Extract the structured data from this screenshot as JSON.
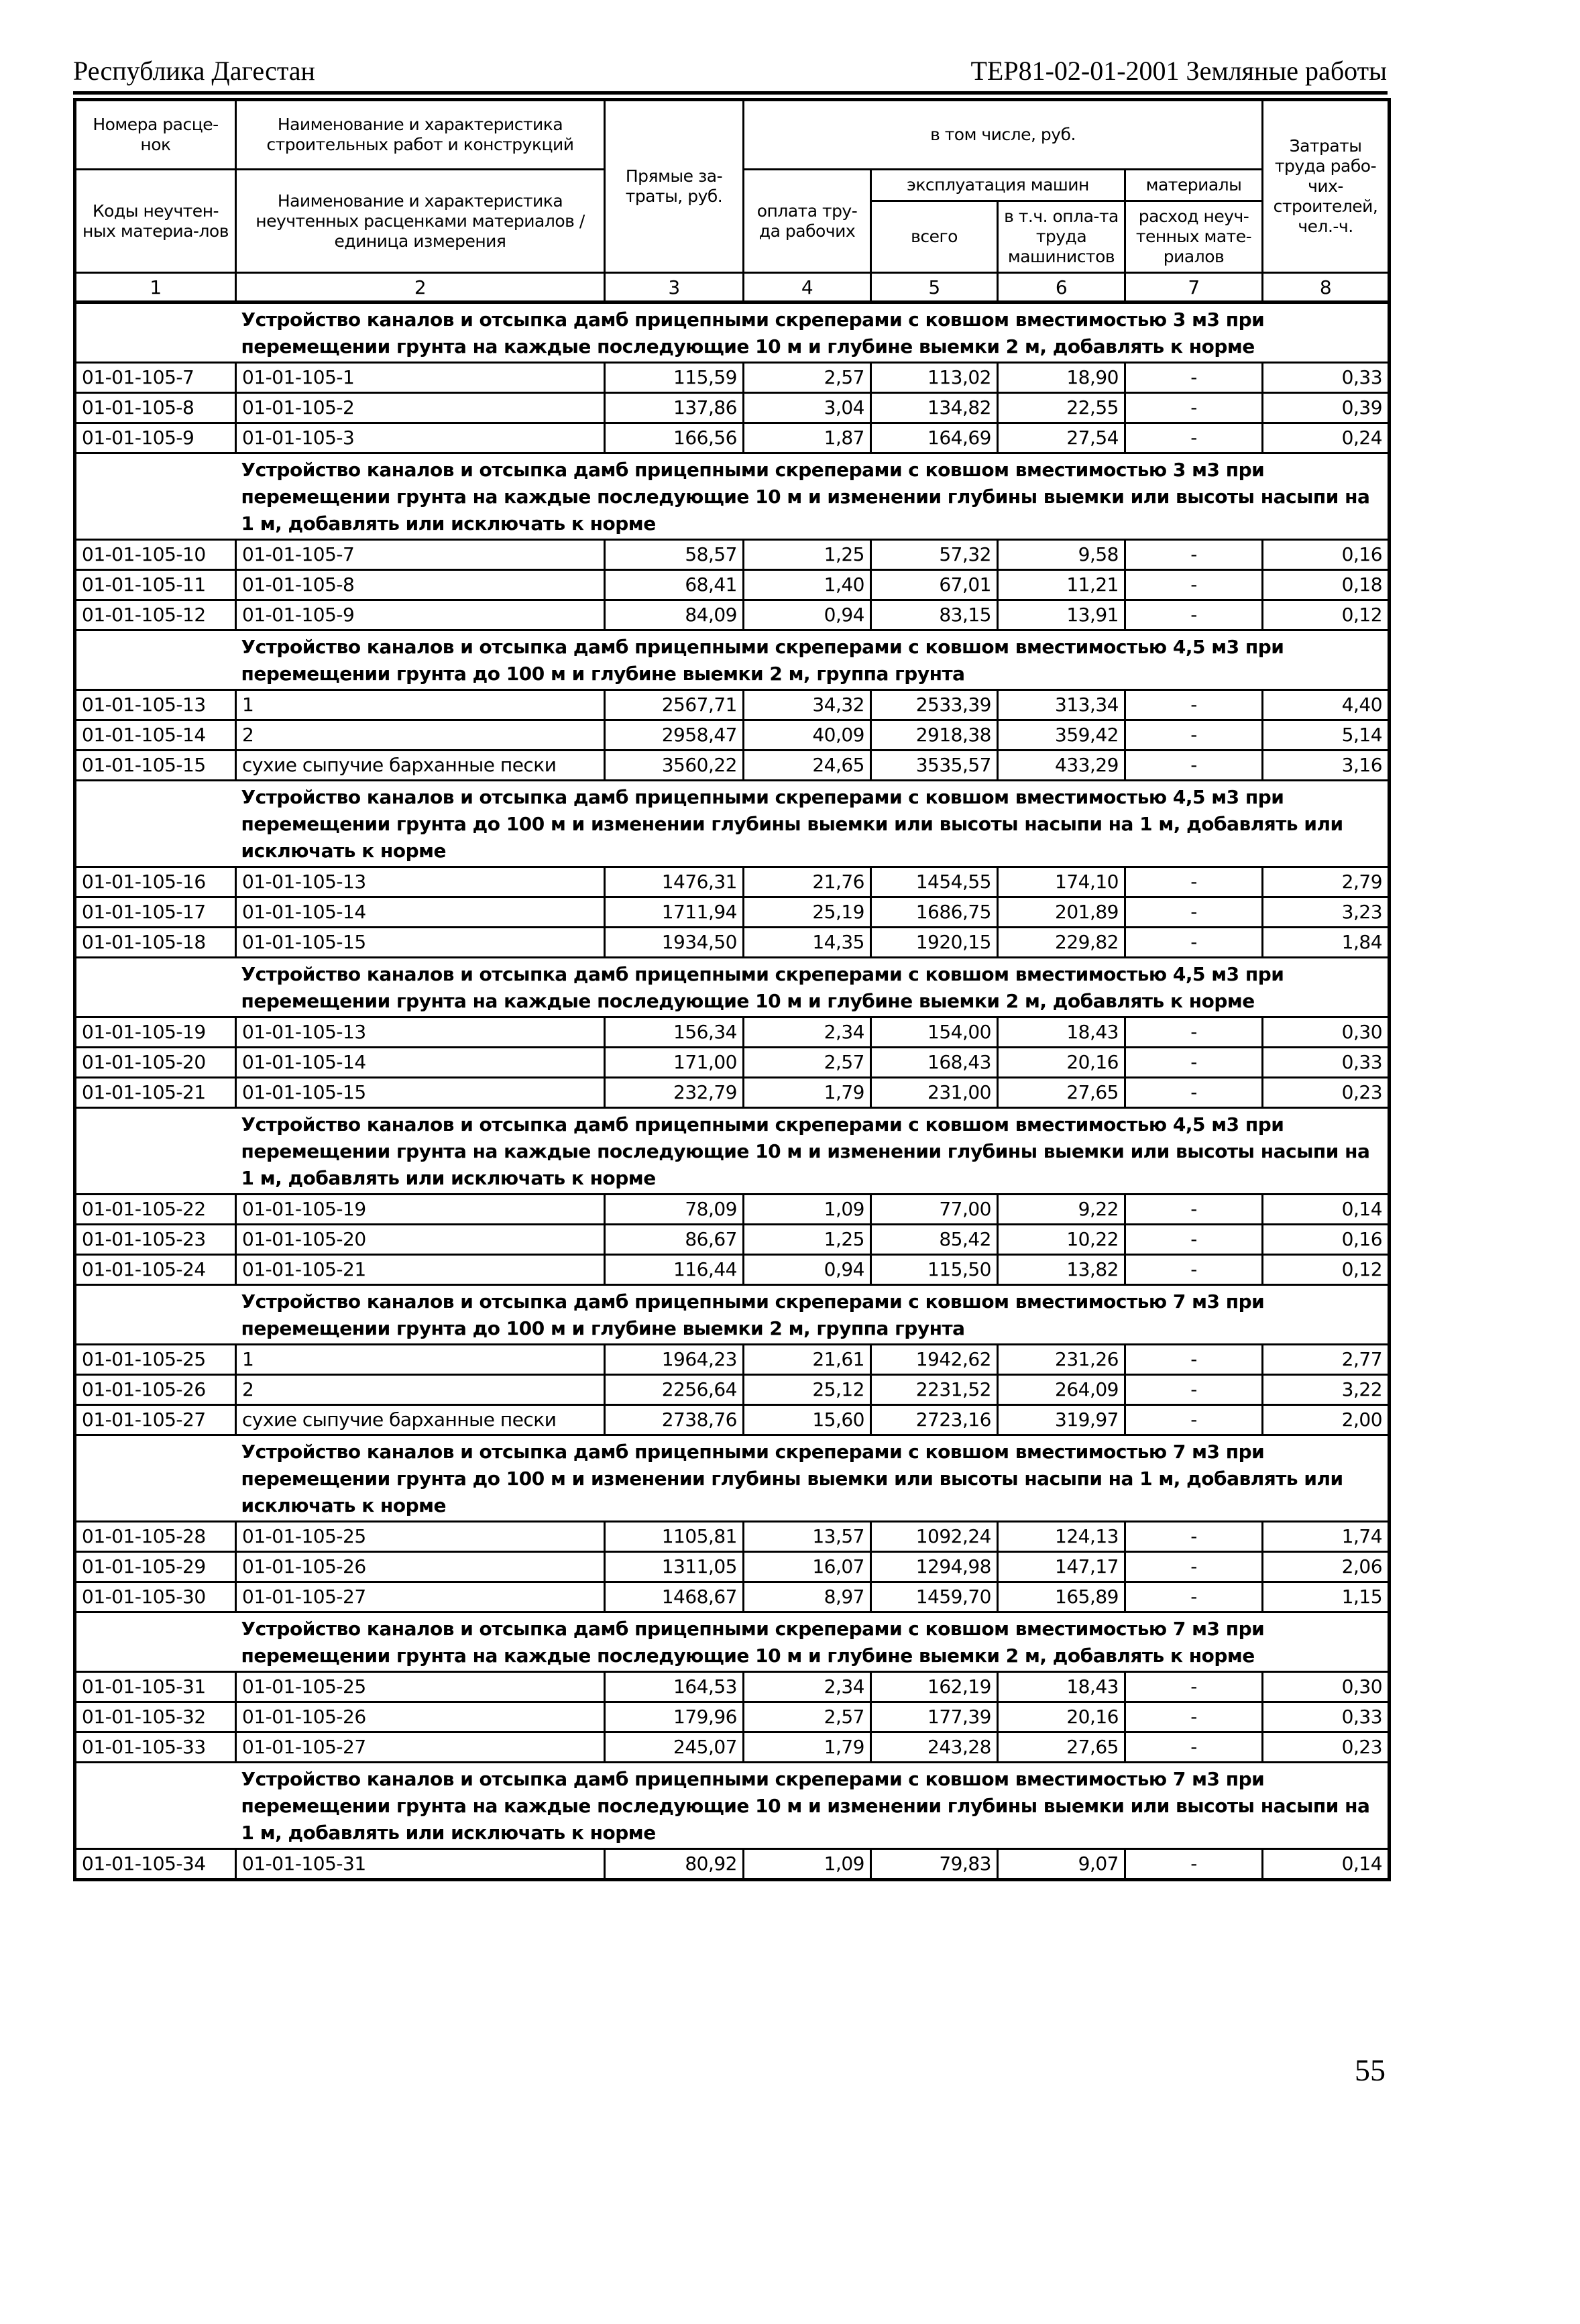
{
  "header": {
    "left": "Республика Дагестан",
    "right": "ТЕР81-02-01-2001  Земляные работы"
  },
  "columns": {
    "c1_top": "Номера расце-нок",
    "c1_bottom": "Коды неучтен-ных материа-лов",
    "c2_top": "Наименование и характеристика строительных работ и конструкций",
    "c2_bottom": "Наименование и характеристика неучтенных расценками материалов / единица измерения",
    "c3": "Прямые за-траты, руб.",
    "incl": "в том числе, руб.",
    "c4": "оплата тру-да рабочих",
    "machines": "эксплуатация машин",
    "c5": "всего",
    "c6": "в т.ч. опла-та труда машинистов",
    "materials": "материалы",
    "c7": "расход неуч-тенных мате-риалов",
    "c8": "Затраты труда рабо-чих-строителей, чел.-ч.",
    "numbers": [
      "1",
      "2",
      "3",
      "4",
      "5",
      "6",
      "7",
      "8"
    ]
  },
  "sections": [
    {
      "title": "Устройство каналов и отсыпка дамб прицепными скреперами с ковшом вместимостью 3 м3 при перемещении грунта на каждые последующие 10 м и глубине выемки 2 м, добавлять к норме",
      "rows": [
        [
          "01-01-105-7",
          "01-01-105-1",
          "115,59",
          "2,57",
          "113,02",
          "18,90",
          "-",
          "0,33"
        ],
        [
          "01-01-105-8",
          "01-01-105-2",
          "137,86",
          "3,04",
          "134,82",
          "22,55",
          "-",
          "0,39"
        ],
        [
          "01-01-105-9",
          "01-01-105-3",
          "166,56",
          "1,87",
          "164,69",
          "27,54",
          "-",
          "0,24"
        ]
      ]
    },
    {
      "title": "Устройство каналов и отсыпка дамб прицепными скреперами с ковшом вместимостью 3 м3 при перемещении грунта на каждые последующие 10 м и изменении глубины выемки или высоты насыпи на 1 м, добавлять или исключать к норме",
      "rows": [
        [
          "01-01-105-10",
          "01-01-105-7",
          "58,57",
          "1,25",
          "57,32",
          "9,58",
          "-",
          "0,16"
        ],
        [
          "01-01-105-11",
          "01-01-105-8",
          "68,41",
          "1,40",
          "67,01",
          "11,21",
          "-",
          "0,18"
        ],
        [
          "01-01-105-12",
          "01-01-105-9",
          "84,09",
          "0,94",
          "83,15",
          "13,91",
          "-",
          "0,12"
        ]
      ]
    },
    {
      "title": "Устройство каналов и отсыпка дамб прицепными скреперами с ковшом вместимостью 4,5 м3 при перемещении грунта до 100 м и глубине выемки 2 м, группа грунта",
      "rows": [
        [
          "01-01-105-13",
          "1",
          "2567,71",
          "34,32",
          "2533,39",
          "313,34",
          "-",
          "4,40"
        ],
        [
          "01-01-105-14",
          "2",
          "2958,47",
          "40,09",
          "2918,38",
          "359,42",
          "-",
          "5,14"
        ],
        [
          "01-01-105-15",
          "сухие сыпучие барханные пески",
          "3560,22",
          "24,65",
          "3535,57",
          "433,29",
          "-",
          "3,16"
        ]
      ]
    },
    {
      "title": "Устройство каналов и отсыпка дамб прицепными скреперами с ковшом вместимостью 4,5 м3 при перемещении грунта до 100 м и изменении глубины выемки или высоты насыпи на 1 м, добавлять или исключать к норме",
      "rows": [
        [
          "01-01-105-16",
          "01-01-105-13",
          "1476,31",
          "21,76",
          "1454,55",
          "174,10",
          "-",
          "2,79"
        ],
        [
          "01-01-105-17",
          "01-01-105-14",
          "1711,94",
          "25,19",
          "1686,75",
          "201,89",
          "-",
          "3,23"
        ],
        [
          "01-01-105-18",
          "01-01-105-15",
          "1934,50",
          "14,35",
          "1920,15",
          "229,82",
          "-",
          "1,84"
        ]
      ]
    },
    {
      "title": "Устройство каналов и отсыпка дамб прицепными скреперами с ковшом вместимостью 4,5 м3 при перемещении грунта на каждые последующие 10 м и глубине выемки 2 м, добавлять к норме",
      "rows": [
        [
          "01-01-105-19",
          "01-01-105-13",
          "156,34",
          "2,34",
          "154,00",
          "18,43",
          "-",
          "0,30"
        ],
        [
          "01-01-105-20",
          "01-01-105-14",
          "171,00",
          "2,57",
          "168,43",
          "20,16",
          "-",
          "0,33"
        ],
        [
          "01-01-105-21",
          "01-01-105-15",
          "232,79",
          "1,79",
          "231,00",
          "27,65",
          "-",
          "0,23"
        ]
      ]
    },
    {
      "title": "Устройство каналов и отсыпка дамб прицепными скреперами с ковшом вместимостью 4,5 м3 при перемещении грунта на каждые последующие 10 м и изменении глубины выемки или высоты насыпи на 1 м, добавлять или исключать к норме",
      "rows": [
        [
          "01-01-105-22",
          "01-01-105-19",
          "78,09",
          "1,09",
          "77,00",
          "9,22",
          "-",
          "0,14"
        ],
        [
          "01-01-105-23",
          "01-01-105-20",
          "86,67",
          "1,25",
          "85,42",
          "10,22",
          "-",
          "0,16"
        ],
        [
          "01-01-105-24",
          "01-01-105-21",
          "116,44",
          "0,94",
          "115,50",
          "13,82",
          "-",
          "0,12"
        ]
      ]
    },
    {
      "title": "Устройство каналов и отсыпка дамб прицепными скреперами с ковшом вместимостью 7 м3 при перемещении грунта до 100 м и глубине выемки 2 м, группа грунта",
      "rows": [
        [
          "01-01-105-25",
          "1",
          "1964,23",
          "21,61",
          "1942,62",
          "231,26",
          "-",
          "2,77"
        ],
        [
          "01-01-105-26",
          "2",
          "2256,64",
          "25,12",
          "2231,52",
          "264,09",
          "-",
          "3,22"
        ],
        [
          "01-01-105-27",
          "сухие сыпучие барханные пески",
          "2738,76",
          "15,60",
          "2723,16",
          "319,97",
          "-",
          "2,00"
        ]
      ]
    },
    {
      "title": "Устройство каналов и отсыпка дамб прицепными скреперами с ковшом вместимостью 7 м3 при перемещении грунта до 100 м и изменении глубины выемки или высоты насыпи на 1 м, добавлять или исключать к норме",
      "rows": [
        [
          "01-01-105-28",
          "01-01-105-25",
          "1105,81",
          "13,57",
          "1092,24",
          "124,13",
          "-",
          "1,74"
        ],
        [
          "01-01-105-29",
          "01-01-105-26",
          "1311,05",
          "16,07",
          "1294,98",
          "147,17",
          "-",
          "2,06"
        ],
        [
          "01-01-105-30",
          "01-01-105-27",
          "1468,67",
          "8,97",
          "1459,70",
          "165,89",
          "-",
          "1,15"
        ]
      ]
    },
    {
      "title": "Устройство каналов и отсыпка дамб прицепными скреперами с ковшом вместимостью 7 м3 при перемещении грунта на каждые последующие 10 м и глубине выемки 2 м, добавлять к норме",
      "rows": [
        [
          "01-01-105-31",
          "01-01-105-25",
          "164,53",
          "2,34",
          "162,19",
          "18,43",
          "-",
          "0,30"
        ],
        [
          "01-01-105-32",
          "01-01-105-26",
          "179,96",
          "2,57",
          "177,39",
          "20,16",
          "-",
          "0,33"
        ],
        [
          "01-01-105-33",
          "01-01-105-27",
          "245,07",
          "1,79",
          "243,28",
          "27,65",
          "-",
          "0,23"
        ]
      ]
    },
    {
      "title": "Устройство каналов и отсыпка дамб прицепными скреперами с ковшом вместимостью 7 м3 при перемещении грунта на каждые последующие 10 м и изменении глубины выемки или высоты насыпи на 1 м, добавлять или исключать к норме",
      "rows": [
        [
          "01-01-105-34",
          "01-01-105-31",
          "80,92",
          "1,09",
          "79,83",
          "9,07",
          "-",
          "0,14"
        ]
      ]
    }
  ],
  "page_number": "55"
}
